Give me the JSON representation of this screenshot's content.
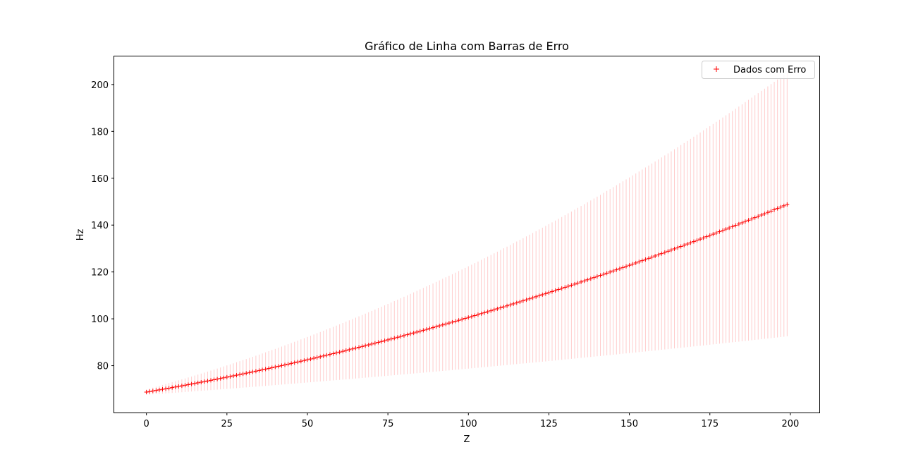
{
  "chart_data": {
    "type": "line",
    "title": "Gráfico de Linha com Barras de Erro",
    "xlabel": "Z",
    "ylabel": "Hz",
    "xlim": [
      -10,
      209
    ],
    "ylim": [
      60,
      212
    ],
    "x_ticks": [
      0,
      25,
      50,
      75,
      100,
      125,
      150,
      175,
      200
    ],
    "y_ticks": [
      80,
      100,
      120,
      140,
      160,
      180,
      200
    ],
    "grid": false,
    "legend_position": "top-right",
    "series": [
      {
        "name": "Dados com Erro",
        "color": "#ff0000",
        "errorbar_color": "#ffcccc",
        "marker": "+",
        "x_range": [
          0,
          199
        ],
        "x_step": 1,
        "y_model": "quadratic",
        "y_points": [
          {
            "x": 0,
            "y": 69
          },
          {
            "x": 50,
            "y": 82
          },
          {
            "x": 100,
            "y": 100.5
          },
          {
            "x": 150,
            "y": 123.5
          },
          {
            "x": 199,
            "y": 148.5
          }
        ],
        "error_points": [
          {
            "x": 0,
            "err": 1.5
          },
          {
            "x": 50,
            "err": 9
          },
          {
            "x": 100,
            "err": 22
          },
          {
            "x": 150,
            "err": 38
          },
          {
            "x": 199,
            "err": 56
          }
        ]
      }
    ]
  }
}
